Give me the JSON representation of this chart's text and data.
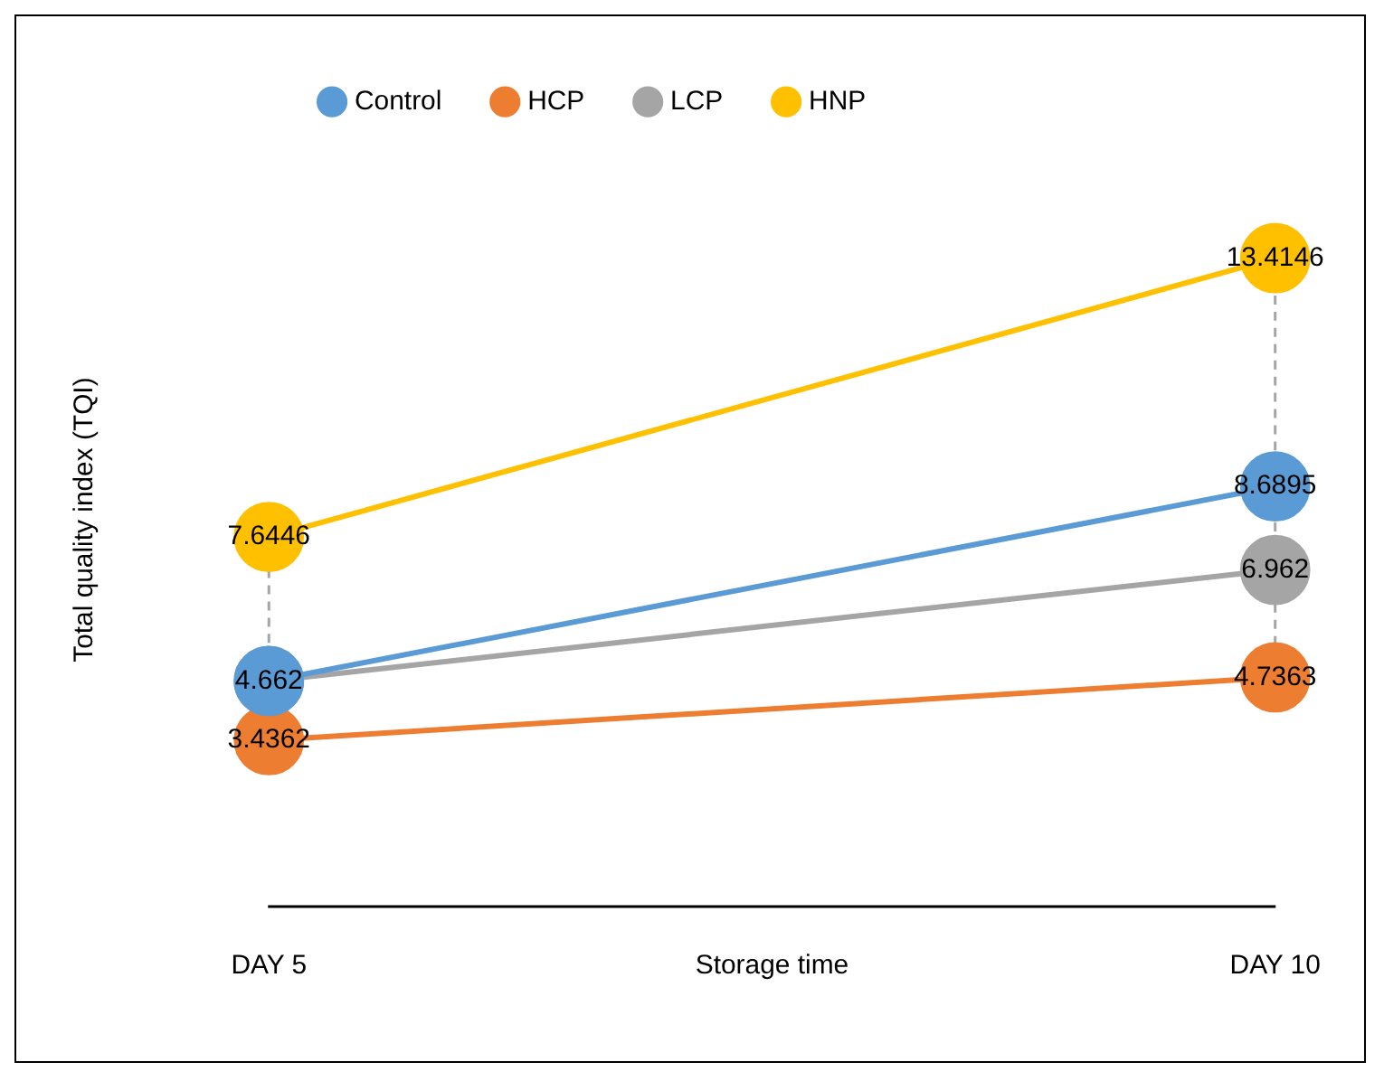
{
  "chart_data": {
    "type": "line",
    "ylabel": "Total quality index (TQI)",
    "xlabel": "Storage time",
    "categories": [
      "DAY 5",
      "DAY 10"
    ],
    "series": [
      {
        "name": "Control",
        "color": "#5b9bd5",
        "values": [
          4.662,
          8.6895
        ],
        "value_labels": [
          "4.662",
          "8.6895"
        ]
      },
      {
        "name": "HCP",
        "color": "#ed7d31",
        "values": [
          3.4362,
          4.7363
        ],
        "value_labels": [
          "3.4362",
          "4.7363"
        ]
      },
      {
        "name": "LCP",
        "color": "#a5a5a5",
        "values": [
          4.662,
          6.962
        ],
        "value_labels": [
          null,
          "6.962"
        ]
      },
      {
        "name": "HNP",
        "color": "#ffc000",
        "values": [
          7.6446,
          13.4146
        ],
        "value_labels": [
          "7.6446",
          "13.4146"
        ]
      }
    ],
    "legend": "top left",
    "marker": "circle",
    "line_style": "solid",
    "grid": "x",
    "tick_labels": "x"
  }
}
